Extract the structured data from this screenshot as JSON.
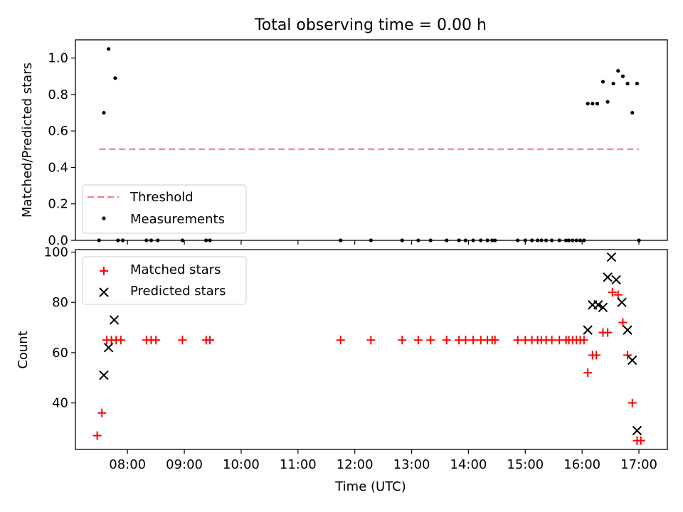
{
  "chart_data": [
    {
      "type": "scatter",
      "title": "Total observing time = 0.00 h",
      "xlabel": "",
      "ylabel": "Matched/Predicted stars",
      "xlim": [
        "07:05",
        "17:30"
      ],
      "ylim": [
        0,
        1.1
      ],
      "yticks": [
        0.0,
        0.2,
        0.4,
        0.6,
        0.8,
        1.0
      ],
      "ytick_labels": [
        "0.0",
        "0.2",
        "0.4",
        "0.6",
        "0.8",
        "1.0"
      ],
      "grid": false,
      "legend_position": "lower-left",
      "series": [
        {
          "name": "Threshold",
          "kind": "line",
          "style": "dashed",
          "color": "#f08080",
          "points": [
            [
              "07:30",
              0.5
            ],
            [
              "17:00",
              0.5
            ]
          ]
        },
        {
          "name": "Measurements",
          "kind": "points",
          "color": "#000000",
          "points": [
            [
              "07:30",
              0.0
            ],
            [
              "07:35",
              0.7
            ],
            [
              "07:40",
              1.05
            ],
            [
              "07:47",
              0.89
            ],
            [
              "07:50",
              0.0
            ],
            [
              "07:55",
              0.0
            ],
            [
              "08:20",
              0.0
            ],
            [
              "08:25",
              0.0
            ],
            [
              "08:32",
              0.0
            ],
            [
              "08:58",
              0.0
            ],
            [
              "09:23",
              0.0
            ],
            [
              "09:27",
              0.0
            ],
            [
              "11:45",
              0.0
            ],
            [
              "12:17",
              0.0
            ],
            [
              "12:50",
              0.0
            ],
            [
              "13:07",
              0.0
            ],
            [
              "13:20",
              0.0
            ],
            [
              "13:37",
              0.0
            ],
            [
              "13:50",
              0.0
            ],
            [
              "13:57",
              0.0
            ],
            [
              "14:05",
              0.0
            ],
            [
              "14:13",
              0.0
            ],
            [
              "14:20",
              0.0
            ],
            [
              "14:25",
              0.0
            ],
            [
              "14:28",
              0.0
            ],
            [
              "14:52",
              0.0
            ],
            [
              "15:00",
              0.0
            ],
            [
              "15:07",
              0.0
            ],
            [
              "15:13",
              0.0
            ],
            [
              "15:17",
              0.0
            ],
            [
              "15:22",
              0.0
            ],
            [
              "15:28",
              0.0
            ],
            [
              "15:36",
              0.0
            ],
            [
              "15:43",
              0.0
            ],
            [
              "15:46",
              0.0
            ],
            [
              "15:50",
              0.0
            ],
            [
              "15:54",
              0.0
            ],
            [
              "15:58",
              0.0
            ],
            [
              "16:02",
              0.0
            ],
            [
              "16:06",
              0.75
            ],
            [
              "16:11",
              0.75
            ],
            [
              "16:16",
              0.75
            ],
            [
              "16:22",
              0.87
            ],
            [
              "16:27",
              0.76
            ],
            [
              "16:33",
              0.86
            ],
            [
              "16:38",
              0.93
            ],
            [
              "16:43",
              0.9
            ],
            [
              "16:48",
              0.86
            ],
            [
              "16:53",
              0.7
            ],
            [
              "16:58",
              0.86
            ],
            [
              "17:00",
              0.0
            ]
          ]
        }
      ]
    },
    {
      "type": "scatter",
      "title": "",
      "xlabel": "Time (UTC)",
      "ylabel": "Count",
      "xlim": [
        "07:05",
        "17:30"
      ],
      "ylim": [
        21.5,
        101
      ],
      "yticks": [
        40,
        60,
        80,
        100
      ],
      "ytick_labels": [
        "40",
        "60",
        "80",
        "100"
      ],
      "xticks": [
        "08:00",
        "09:00",
        "10:00",
        "11:00",
        "12:00",
        "13:00",
        "14:00",
        "15:00",
        "16:00",
        "17:00"
      ],
      "xtick_labels": [
        "08:00",
        "09:00",
        "10:00",
        "11:00",
        "12:00",
        "13:00",
        "14:00",
        "15:00",
        "16:00",
        "17:00"
      ],
      "grid": false,
      "legend_position": "upper-left",
      "series": [
        {
          "name": "Matched stars",
          "kind": "plus",
          "color": "#ff0000",
          "points": [
            [
              "07:28",
              27
            ],
            [
              "07:33",
              36
            ],
            [
              "07:38",
              65
            ],
            [
              "07:43",
              65
            ],
            [
              "07:48",
              65
            ],
            [
              "07:53",
              65
            ],
            [
              "08:20",
              65
            ],
            [
              "08:25",
              65
            ],
            [
              "08:30",
              65
            ],
            [
              "08:58",
              65
            ],
            [
              "09:23",
              65
            ],
            [
              "09:27",
              65
            ],
            [
              "11:45",
              65
            ],
            [
              "12:17",
              65
            ],
            [
              "12:50",
              65
            ],
            [
              "13:07",
              65
            ],
            [
              "13:20",
              65
            ],
            [
              "13:37",
              65
            ],
            [
              "13:50",
              65
            ],
            [
              "13:57",
              65
            ],
            [
              "14:05",
              65
            ],
            [
              "14:13",
              65
            ],
            [
              "14:20",
              65
            ],
            [
              "14:25",
              65
            ],
            [
              "14:28",
              65
            ],
            [
              "14:52",
              65
            ],
            [
              "15:00",
              65
            ],
            [
              "15:07",
              65
            ],
            [
              "15:13",
              65
            ],
            [
              "15:17",
              65
            ],
            [
              "15:22",
              65
            ],
            [
              "15:28",
              65
            ],
            [
              "15:36",
              65
            ],
            [
              "15:43",
              65
            ],
            [
              "15:46",
              65
            ],
            [
              "15:50",
              65
            ],
            [
              "15:54",
              65
            ],
            [
              "15:58",
              65
            ],
            [
              "16:02",
              65
            ],
            [
              "16:06",
              52
            ],
            [
              "16:11",
              59
            ],
            [
              "16:15",
              59
            ],
            [
              "16:22",
              68
            ],
            [
              "16:27",
              68
            ],
            [
              "16:32",
              84
            ],
            [
              "16:38",
              83
            ],
            [
              "16:43",
              72
            ],
            [
              "16:48",
              59
            ],
            [
              "16:53",
              40
            ],
            [
              "16:58",
              25
            ],
            [
              "17:02",
              25
            ]
          ]
        },
        {
          "name": "Predicted stars",
          "kind": "cross",
          "color": "#000000",
          "points": [
            [
              "07:35",
              51
            ],
            [
              "07:40",
              62
            ],
            [
              "07:46",
              73
            ],
            [
              "16:06",
              69
            ],
            [
              "16:11",
              79
            ],
            [
              "16:17",
              79
            ],
            [
              "16:22",
              78
            ],
            [
              "16:27",
              90
            ],
            [
              "16:31",
              98
            ],
            [
              "16:36",
              89
            ],
            [
              "16:42",
              80
            ],
            [
              "16:48",
              69
            ],
            [
              "16:53",
              57
            ],
            [
              "16:58",
              29
            ]
          ]
        }
      ]
    }
  ]
}
